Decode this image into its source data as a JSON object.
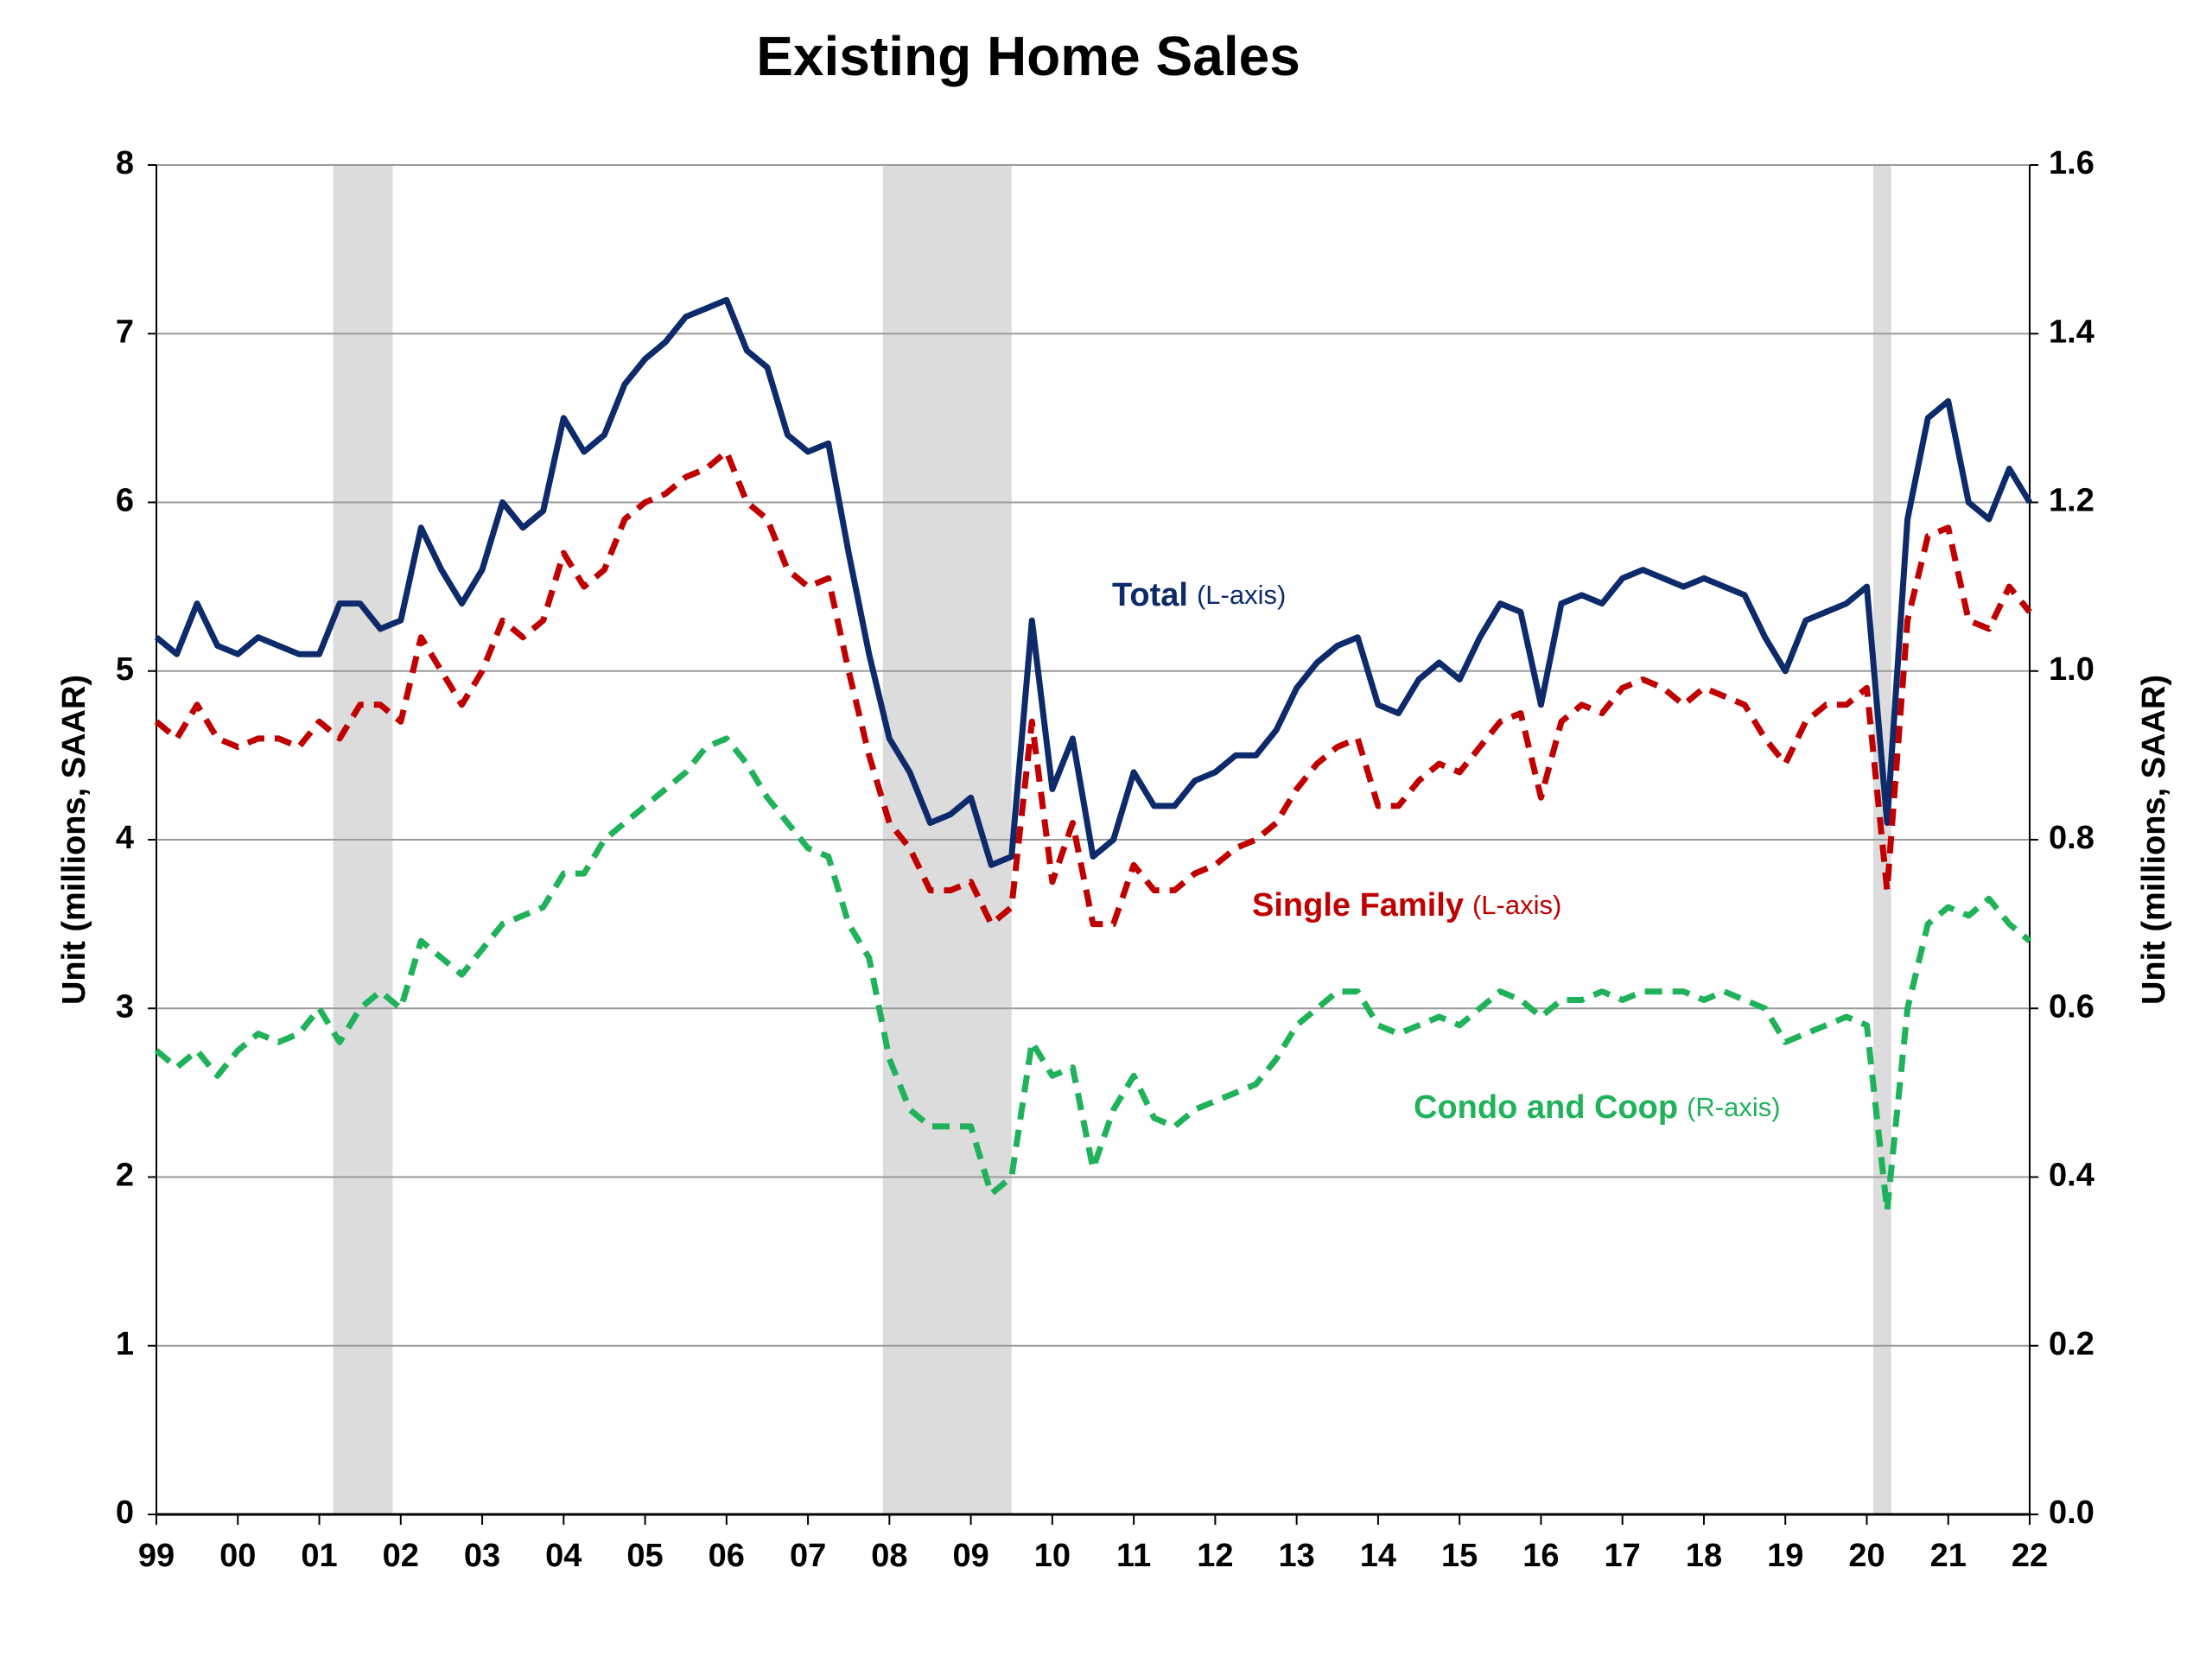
{
  "chart_data": {
    "type": "line",
    "title": "Existing Home Sales",
    "y_label": "Unit (millions, SAAR)",
    "y2_label": "Unit (millions, SAAR)",
    "xlim": [
      1999,
      2022
    ],
    "xticks": [
      {
        "value": 1999,
        "label": "99"
      },
      {
        "value": 2000,
        "label": "00"
      },
      {
        "value": 2001,
        "label": "01"
      },
      {
        "value": 2002,
        "label": "02"
      },
      {
        "value": 2003,
        "label": "03"
      },
      {
        "value": 2004,
        "label": "04"
      },
      {
        "value": 2005,
        "label": "05"
      },
      {
        "value": 2006,
        "label": "06"
      },
      {
        "value": 2007,
        "label": "07"
      },
      {
        "value": 2008,
        "label": "08"
      },
      {
        "value": 2009,
        "label": "09"
      },
      {
        "value": 2010,
        "label": "10"
      },
      {
        "value": 2011,
        "label": "11"
      },
      {
        "value": 2012,
        "label": "12"
      },
      {
        "value": 2013,
        "label": "13"
      },
      {
        "value": 2014,
        "label": "14"
      },
      {
        "value": 2015,
        "label": "15"
      },
      {
        "value": 2016,
        "label": "16"
      },
      {
        "value": 2017,
        "label": "17"
      },
      {
        "value": 2018,
        "label": "18"
      },
      {
        "value": 2019,
        "label": "19"
      },
      {
        "value": 2020,
        "label": "20"
      },
      {
        "value": 2021,
        "label": "21"
      },
      {
        "value": 2022,
        "label": "22"
      }
    ],
    "ylim": [
      0,
      8
    ],
    "yticks": [
      0,
      1,
      2,
      3,
      4,
      5,
      6,
      7,
      8
    ],
    "y2lim": [
      0,
      1.6
    ],
    "y2ticks": [
      {
        "value": 0,
        "label": "0.0"
      },
      0.2,
      0.4,
      0.6,
      0.8,
      {
        "value": 1,
        "label": "1.0"
      },
      1.2,
      1.4,
      1.6
    ],
    "grid": true,
    "shaded_periods": [
      [
        2001.17,
        2001.9
      ],
      [
        2007.92,
        2009.5
      ],
      [
        2020.08,
        2020.3
      ]
    ],
    "x": [
      1999,
      1999.25,
      1999.5,
      1999.75,
      2000,
      2000.25,
      2000.5,
      2000.75,
      2001,
      2001.25,
      2001.5,
      2001.75,
      2002,
      2002.25,
      2002.5,
      2002.75,
      2003,
      2003.25,
      2003.5,
      2003.75,
      2004,
      2004.25,
      2004.5,
      2004.75,
      2005,
      2005.25,
      2005.5,
      2005.75,
      2006,
      2006.25,
      2006.5,
      2006.75,
      2007,
      2007.25,
      2007.5,
      2007.75,
      2008,
      2008.25,
      2008.5,
      2008.75,
      2009,
      2009.25,
      2009.5,
      2009.75,
      2010,
      2010.25,
      2010.5,
      2010.75,
      2011,
      2011.25,
      2011.5,
      2011.75,
      2012,
      2012.25,
      2012.5,
      2012.75,
      2013,
      2013.25,
      2013.5,
      2013.75,
      2014,
      2014.25,
      2014.5,
      2014.75,
      2015,
      2015.25,
      2015.5,
      2015.75,
      2016,
      2016.25,
      2016.5,
      2016.75,
      2017,
      2017.25,
      2017.5,
      2017.75,
      2018,
      2018.25,
      2018.5,
      2018.75,
      2019,
      2019.25,
      2019.5,
      2019.75,
      2020,
      2020.25,
      2020.5,
      2020.75,
      2021,
      2021.25,
      2021.5,
      2021.75,
      2022
    ],
    "series": [
      {
        "name": "Total",
        "note": "(L-axis)",
        "color": "#0d2a6b",
        "dash": false,
        "axis": "y",
        "values": [
          5.2,
          5.1,
          5.4,
          5.15,
          5.1,
          5.2,
          5.15,
          5.1,
          5.1,
          5.4,
          5.4,
          5.25,
          5.3,
          5.85,
          5.6,
          5.4,
          5.6,
          6.0,
          5.85,
          5.95,
          6.5,
          6.3,
          6.4,
          6.7,
          6.85,
          6.95,
          7.1,
          7.15,
          7.2,
          6.9,
          6.8,
          6.4,
          6.3,
          6.35,
          5.7,
          5.1,
          4.6,
          4.4,
          4.1,
          4.15,
          4.25,
          3.85,
          3.9,
          5.3,
          4.3,
          4.6,
          3.9,
          4.0,
          4.4,
          4.2,
          4.2,
          4.35,
          4.4,
          4.5,
          4.5,
          4.65,
          4.9,
          5.05,
          5.15,
          5.2,
          4.8,
          4.75,
          4.95,
          5.05,
          4.95,
          5.2,
          5.4,
          5.35,
          4.8,
          5.4,
          5.45,
          5.4,
          5.55,
          5.6,
          5.55,
          5.5,
          5.55,
          5.5,
          5.45,
          5.2,
          5.0,
          5.3,
          5.35,
          5.4,
          5.5,
          4.1,
          5.9,
          6.5,
          6.6,
          6.0,
          5.9,
          6.2,
          6.0
        ]
      },
      {
        "name": "Single Family",
        "note": "(L-axis)",
        "color": "#c00000",
        "dash": true,
        "axis": "y",
        "values": [
          4.7,
          4.6,
          4.8,
          4.6,
          4.55,
          4.6,
          4.6,
          4.55,
          4.7,
          4.6,
          4.8,
          4.8,
          4.7,
          5.2,
          5.0,
          4.8,
          5.0,
          5.3,
          5.2,
          5.3,
          5.7,
          5.5,
          5.6,
          5.9,
          6.0,
          6.05,
          6.15,
          6.2,
          6.3,
          6.0,
          5.9,
          5.6,
          5.5,
          5.55,
          5.0,
          4.5,
          4.1,
          3.95,
          3.7,
          3.7,
          3.75,
          3.5,
          3.6,
          4.7,
          3.75,
          4.1,
          3.5,
          3.5,
          3.85,
          3.7,
          3.7,
          3.8,
          3.85,
          3.95,
          4.0,
          4.1,
          4.3,
          4.45,
          4.55,
          4.6,
          4.2,
          4.2,
          4.35,
          4.45,
          4.4,
          4.55,
          4.7,
          4.75,
          4.25,
          4.7,
          4.8,
          4.75,
          4.9,
          4.95,
          4.9,
          4.8,
          4.9,
          4.85,
          4.8,
          4.6,
          4.45,
          4.7,
          4.8,
          4.8,
          4.9,
          3.7,
          5.3,
          5.8,
          5.85,
          5.3,
          5.25,
          5.5,
          5.35
        ]
      },
      {
        "name": "Condo and Coop",
        "note": "(R-axis)",
        "color": "#1fb25a",
        "dash": true,
        "axis": "y2",
        "values": [
          0.55,
          0.53,
          0.55,
          0.52,
          0.55,
          0.57,
          0.56,
          0.57,
          0.6,
          0.56,
          0.6,
          0.62,
          0.6,
          0.68,
          0.66,
          0.64,
          0.67,
          0.7,
          0.71,
          0.72,
          0.76,
          0.76,
          0.8,
          0.82,
          0.84,
          0.86,
          0.88,
          0.91,
          0.92,
          0.89,
          0.85,
          0.82,
          0.79,
          0.78,
          0.7,
          0.66,
          0.54,
          0.48,
          0.46,
          0.46,
          0.46,
          0.38,
          0.4,
          0.56,
          0.52,
          0.53,
          0.41,
          0.48,
          0.52,
          0.47,
          0.46,
          0.48,
          0.49,
          0.5,
          0.51,
          0.54,
          0.58,
          0.6,
          0.62,
          0.62,
          0.58,
          0.57,
          0.58,
          0.59,
          0.58,
          0.6,
          0.62,
          0.61,
          0.59,
          0.61,
          0.61,
          0.62,
          0.61,
          0.62,
          0.62,
          0.62,
          0.61,
          0.62,
          0.61,
          0.6,
          0.56,
          0.57,
          0.58,
          0.59,
          0.58,
          0.36,
          0.6,
          0.7,
          0.72,
          0.71,
          0.73,
          0.7,
          0.68
        ]
      }
    ]
  }
}
